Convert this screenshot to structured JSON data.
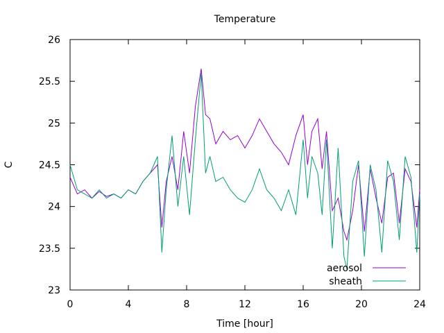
{
  "chart_data": {
    "type": "line",
    "title": "Temperature",
    "xlabel": "Time [hour]",
    "ylabel": "C",
    "xlim": [
      0,
      24
    ],
    "ylim": [
      23,
      26
    ],
    "xticks": [
      0,
      4,
      8,
      12,
      16,
      20,
      24
    ],
    "xtick_labels": [
      "0",
      "4",
      "8",
      "12",
      "16",
      "20",
      "24"
    ],
    "yticks": [
      23,
      23.5,
      24,
      24.5,
      25,
      25.5,
      26
    ],
    "ytick_labels": [
      "23",
      "23.5",
      "24",
      "24.5",
      "25",
      "25.5",
      "26"
    ],
    "grid": false,
    "legend_position": "bottom-right",
    "series": [
      {
        "name": "aerosol",
        "color": "#9400d3",
        "x": [
          0,
          0.5,
          1,
          1.5,
          2,
          2.5,
          3,
          3.5,
          4,
          4.5,
          5,
          5.5,
          6,
          6.3,
          6.6,
          7,
          7.4,
          7.8,
          8.2,
          8.6,
          9,
          9.3,
          9.6,
          10,
          10.5,
          11,
          11.5,
          12,
          12.5,
          13,
          13.5,
          14,
          14.5,
          15,
          15.5,
          16,
          16.3,
          16.6,
          17,
          17.3,
          17.6,
          18,
          18.4,
          18.8,
          19,
          19.4,
          19.8,
          20.2,
          20.6,
          21,
          21.4,
          21.8,
          22.2,
          22.6,
          23,
          23.4,
          23.8,
          24
        ],
        "y": [
          24.35,
          24.15,
          24.2,
          24.1,
          24.18,
          24.12,
          24.15,
          24.1,
          24.2,
          24.15,
          24.3,
          24.4,
          24.5,
          23.75,
          24.3,
          24.6,
          24.2,
          24.9,
          24.4,
          25.2,
          25.65,
          25.1,
          25.05,
          24.75,
          24.9,
          24.8,
          24.85,
          24.7,
          24.85,
          25.05,
          24.9,
          24.75,
          24.65,
          24.5,
          24.85,
          25.1,
          24.5,
          24.9,
          25.05,
          24.45,
          24.9,
          23.95,
          24.1,
          23.7,
          23.6,
          23.95,
          24.5,
          23.7,
          24.45,
          24.1,
          23.8,
          24.35,
          24.4,
          23.8,
          24.45,
          24.3,
          23.75,
          24.2
        ]
      },
      {
        "name": "sheath",
        "color": "#009e73",
        "x": [
          0,
          0.5,
          1,
          1.5,
          2,
          2.5,
          3,
          3.5,
          4,
          4.5,
          5,
          5.5,
          6,
          6.3,
          6.6,
          7,
          7.4,
          7.8,
          8.2,
          8.6,
          9,
          9.3,
          9.6,
          10,
          10.5,
          11,
          11.5,
          12,
          12.5,
          13,
          13.5,
          14,
          14.5,
          15,
          15.5,
          16,
          16.3,
          16.6,
          17,
          17.3,
          17.6,
          18,
          18.4,
          18.8,
          19,
          19.4,
          19.8,
          20.2,
          20.6,
          21,
          21.4,
          21.8,
          22.2,
          22.6,
          23,
          23.4,
          23.8,
          24
        ],
        "y": [
          24.5,
          24.2,
          24.15,
          24.1,
          24.2,
          24.1,
          24.15,
          24.1,
          24.2,
          24.15,
          24.3,
          24.4,
          24.6,
          23.45,
          24.2,
          24.85,
          24.0,
          24.6,
          23.9,
          24.8,
          25.6,
          24.4,
          24.6,
          24.3,
          24.35,
          24.2,
          24.1,
          24.05,
          24.2,
          24.45,
          24.2,
          24.1,
          23.95,
          24.2,
          23.9,
          24.8,
          24.1,
          24.6,
          24.4,
          23.9,
          24.8,
          23.5,
          24.7,
          23.4,
          23.25,
          24.3,
          24.55,
          23.4,
          24.5,
          24.2,
          23.45,
          24.55,
          24.3,
          23.6,
          24.6,
          24.35,
          23.45,
          24.15
        ]
      }
    ]
  }
}
